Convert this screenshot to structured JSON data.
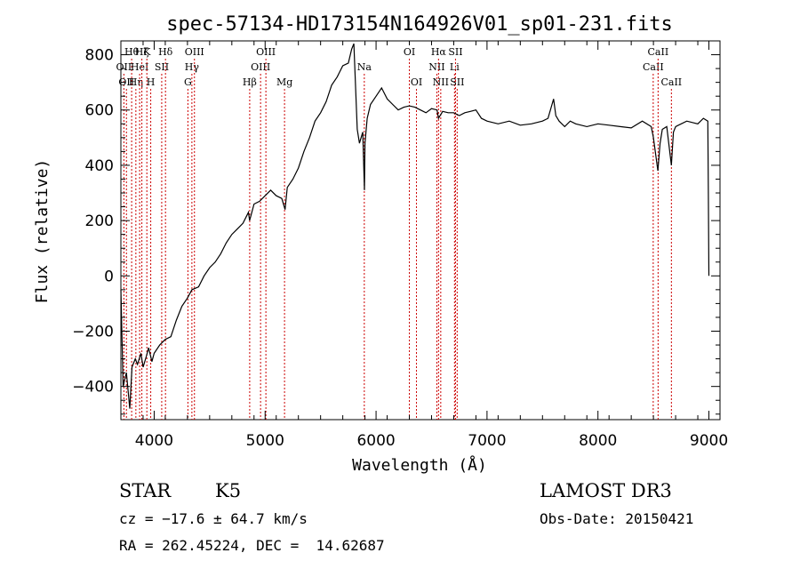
{
  "chart_data": {
    "type": "line",
    "title": "spec-57134-HD173154N164926V01_sp01-231.fits",
    "xlabel": "Wavelength (Å)",
    "ylabel": "Flux (relative)",
    "xlim": [
      3700,
      9100
    ],
    "ylim": [
      -520,
      850
    ],
    "x_ticks": [
      4000,
      5000,
      6000,
      7000,
      8000,
      9000
    ],
    "y_ticks": [
      -400,
      -200,
      0,
      200,
      400,
      600,
      800
    ],
    "grid": false,
    "line_color": "#000000",
    "marker_color": "#cc0000",
    "series": [
      {
        "x": [
          3700,
          3720,
          3750,
          3780,
          3800,
          3830,
          3850,
          3880,
          3900,
          3930,
          3950,
          3980,
          4000,
          4050,
          4100,
          4150,
          4200,
          4250,
          4300,
          4340,
          4400,
          4450,
          4500,
          4550,
          4600,
          4650,
          4700,
          4750,
          4800,
          4850,
          4860,
          4880,
          4900,
          4950,
          5000,
          5050,
          5100,
          5150,
          5180,
          5200,
          5250,
          5300,
          5350,
          5400,
          5450,
          5500,
          5550,
          5600,
          5650,
          5700,
          5750,
          5780,
          5800,
          5830,
          5850,
          5880,
          5895,
          5900,
          5920,
          5950,
          6000,
          6050,
          6100,
          6150,
          6200,
          6250,
          6300,
          6350,
          6400,
          6450,
          6500,
          6550,
          6563,
          6600,
          6650,
          6700,
          6750,
          6800,
          6850,
          6900,
          6950,
          7000,
          7100,
          7200,
          7300,
          7400,
          7500,
          7550,
          7600,
          7620,
          7650,
          7700,
          7750,
          7800,
          7900,
          8000,
          8100,
          8200,
          8300,
          8400,
          8480,
          8500,
          8540,
          8560,
          8580,
          8620,
          8662,
          8680,
          8700,
          8800,
          8900,
          8950,
          8990,
          8995,
          9000
        ],
        "y": [
          -50,
          -400,
          -350,
          -480,
          -330,
          -300,
          -320,
          -280,
          -330,
          -290,
          -260,
          -310,
          -280,
          -250,
          -230,
          -220,
          -160,
          -110,
          -80,
          -50,
          -40,
          0,
          30,
          50,
          80,
          120,
          150,
          170,
          190,
          230,
          200,
          230,
          260,
          270,
          290,
          310,
          290,
          280,
          240,
          320,
          350,
          390,
          450,
          500,
          560,
          590,
          630,
          690,
          720,
          760,
          770,
          820,
          840,
          530,
          480,
          520,
          310,
          480,
          570,
          620,
          650,
          680,
          640,
          620,
          600,
          610,
          615,
          610,
          600,
          590,
          605,
          600,
          570,
          595,
          590,
          590,
          580,
          590,
          595,
          600,
          570,
          560,
          550,
          560,
          545,
          550,
          560,
          570,
          640,
          580,
          560,
          540,
          560,
          550,
          540,
          550,
          545,
          540,
          535,
          560,
          540,
          500,
          380,
          480,
          530,
          540,
          400,
          520,
          540,
          560,
          550,
          570,
          560,
          300,
          0
        ]
      }
    ],
    "line_markers": [
      {
        "x": 3727,
        "label": "OII",
        "row": 1
      },
      {
        "x": 3750,
        "label": "OII",
        "row": 2
      },
      {
        "x": 3797,
        "label": "Hθ",
        "row": 0
      },
      {
        "x": 3835,
        "label": "Hη",
        "row": 2
      },
      {
        "x": 3869,
        "label": "HeI",
        "row": 1
      },
      {
        "x": 3889,
        "label": "Hζ",
        "row": 0
      },
      {
        "x": 3934,
        "label": "K",
        "row": 0
      },
      {
        "x": 3969,
        "label": "H",
        "row": 2
      },
      {
        "x": 4068,
        "label": "SII",
        "row": 1
      },
      {
        "x": 4102,
        "label": "Hδ",
        "row": 0
      },
      {
        "x": 4304,
        "label": "G",
        "row": 2
      },
      {
        "x": 4340,
        "label": "Hγ",
        "row": 1
      },
      {
        "x": 4363,
        "label": "OIII",
        "row": 0
      },
      {
        "x": 4861,
        "label": "Hβ",
        "row": 2
      },
      {
        "x": 4959,
        "label": "OIII",
        "row": 1
      },
      {
        "x": 5007,
        "label": "OIII",
        "row": 0
      },
      {
        "x": 5175,
        "label": "Mg",
        "row": 2
      },
      {
        "x": 5894,
        "label": "Na",
        "row": 1
      },
      {
        "x": 6300,
        "label": "OI",
        "row": 0
      },
      {
        "x": 6364,
        "label": "OI",
        "row": 2
      },
      {
        "x": 6548,
        "label": "NII",
        "row": 1
      },
      {
        "x": 6563,
        "label": "Hα",
        "row": 0
      },
      {
        "x": 6583,
        "label": "NII",
        "row": 2
      },
      {
        "x": 6707,
        "label": "Li",
        "row": 1
      },
      {
        "x": 6716,
        "label": "SII",
        "row": 0
      },
      {
        "x": 6731,
        "label": "SII",
        "row": 2
      },
      {
        "x": 8498,
        "label": "CaII",
        "row": 1
      },
      {
        "x": 8542,
        "label": "CaII",
        "row": 0
      },
      {
        "x": 8662,
        "label": "CaII",
        "row": 2
      }
    ]
  },
  "info": {
    "class_label": "STAR",
    "subclass": "K5",
    "survey": "LAMOST DR3",
    "cz_text": "cz = −17.6 ± 64.7 km/s",
    "obs_date": "Obs-Date: 20150421",
    "coords": "RA = 262.45224, DEC =  14.62687"
  }
}
